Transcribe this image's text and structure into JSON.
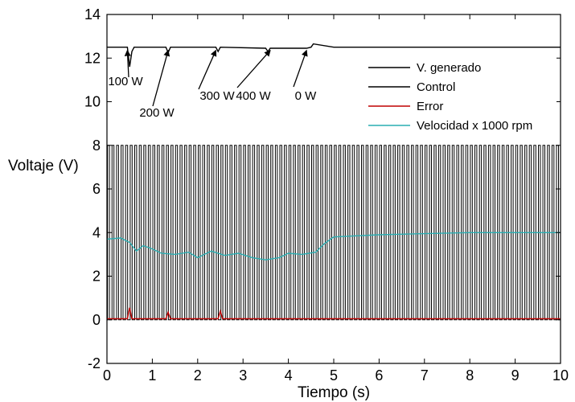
{
  "chart_data": {
    "type": "line",
    "xlabel": "Tiempo (s)",
    "ylabel": "Voltaje (V)",
    "xlim": [
      0,
      10
    ],
    "ylim": [
      -2,
      14
    ],
    "xticks": [
      "0",
      "1",
      "2",
      "3",
      "4",
      "5",
      "6",
      "7",
      "8",
      "9",
      "10"
    ],
    "yticks": [
      "-2",
      "0",
      "2",
      "4",
      "6",
      "8",
      "10",
      "12",
      "14"
    ],
    "grid": false,
    "legend_position": "right",
    "series": [
      {
        "name": "V. generado",
        "color": "#000000",
        "x": [
          0,
          0.45,
          0.5,
          0.55,
          0.6,
          1.3,
          1.35,
          1.4,
          2.4,
          2.45,
          2.5,
          3.5,
          3.55,
          3.6,
          4.4,
          4.5,
          4.55,
          5,
          6,
          7,
          8,
          9,
          10
        ],
        "y": [
          12.5,
          12.5,
          11.6,
          12.3,
          12.5,
          12.5,
          12.25,
          12.5,
          12.5,
          12.3,
          12.5,
          12.45,
          12.3,
          12.45,
          12.45,
          12.5,
          12.65,
          12.5,
          12.5,
          12.5,
          12.5,
          12.5,
          12.5
        ]
      },
      {
        "name": "Control",
        "color": "#000000",
        "pwm_low": 0,
        "pwm_high": 8,
        "pwm_period": 0.1
      },
      {
        "name": "Error",
        "color": "#c00000",
        "x": [
          0,
          0.45,
          0.5,
          0.55,
          1.3,
          1.35,
          1.4,
          2.45,
          2.5,
          2.55,
          3.5,
          4.5,
          5,
          6,
          7,
          8,
          9,
          10
        ],
        "y": [
          0.05,
          0.05,
          0.55,
          0.05,
          0.05,
          0.35,
          0.05,
          0.05,
          0.4,
          0.05,
          0.05,
          0.05,
          0.05,
          0.05,
          0.05,
          0.05,
          0.05,
          0.05
        ]
      },
      {
        "name": "Velocidad x 1000 rpm",
        "color": "#2aaeb2",
        "x": [
          0,
          0.3,
          0.5,
          0.65,
          0.8,
          1.0,
          1.2,
          1.5,
          1.8,
          2.0,
          2.3,
          2.6,
          2.9,
          3.2,
          3.5,
          3.8,
          4.0,
          4.3,
          4.6,
          4.8,
          5.0,
          5.5,
          6.0,
          7.0,
          8.0,
          9.0,
          10.0
        ],
        "y": [
          3.7,
          3.75,
          3.55,
          3.15,
          3.4,
          3.25,
          3.05,
          3.0,
          3.1,
          2.85,
          3.15,
          2.95,
          3.05,
          2.85,
          2.75,
          2.85,
          3.05,
          3.0,
          3.1,
          3.5,
          3.8,
          3.85,
          3.9,
          3.95,
          4.0,
          4.0,
          4.0
        ]
      }
    ],
    "annotations": [
      {
        "text": "100 W",
        "x": 0.45,
        "y": 12.5
      },
      {
        "text": "200 W",
        "x": 1.35,
        "y": 12.5
      },
      {
        "text": "300 W",
        "x": 2.4,
        "y": 12.5
      },
      {
        "text": "400 W",
        "x": 3.6,
        "y": 12.5
      },
      {
        "text": "0 W",
        "x": 4.4,
        "y": 12.5
      }
    ]
  }
}
